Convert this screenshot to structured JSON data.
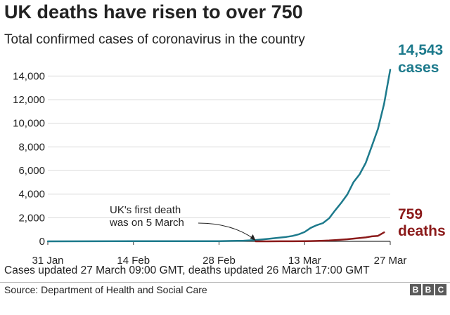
{
  "header": {
    "title": "UK deaths have risen to over 750",
    "subtitle": "Total confirmed cases of coronavirus in the country"
  },
  "labels": {
    "cases_value": "14,543",
    "cases_word": "cases",
    "deaths_value": "759",
    "deaths_word": "deaths",
    "annotation_line1": "UK's first death",
    "annotation_line2": "was on 5 March"
  },
  "footer": {
    "note": "Cases updated 27 March 09:00 GMT, deaths updated 26 March 17:00 GMT",
    "source": "Source: Department of Health and Social Care",
    "logo_letters": [
      "B",
      "B",
      "C"
    ]
  },
  "colors": {
    "cases": "#1d7a8c",
    "deaths": "#8b1a1a",
    "grid": "#d9d9d9",
    "axis": "#333333"
  },
  "chart_data": {
    "type": "line",
    "ylim": [
      0,
      14500
    ],
    "yticks": [
      0,
      2000,
      4000,
      6000,
      8000,
      10000,
      12000,
      14000
    ],
    "ytick_labels": [
      "0",
      "2,000",
      "4,000",
      "6,000",
      "8,000",
      "10,000",
      "12,000",
      "14,000"
    ],
    "xlim": [
      "2020-01-31",
      "2020-03-27"
    ],
    "xticks": [
      "2020-01-31",
      "2020-02-14",
      "2020-02-28",
      "2020-03-13",
      "2020-03-27"
    ],
    "xtick_labels": [
      "31 Jan",
      "14 Feb",
      "28 Feb",
      "13 Mar",
      "27 Mar"
    ],
    "grid": true,
    "annotation_date": "2020-03-05",
    "series": [
      {
        "key": "cases",
        "x": [
          "2020-01-31",
          "2020-02-14",
          "2020-02-28",
          "2020-03-01",
          "2020-03-03",
          "2020-03-05",
          "2020-03-07",
          "2020-03-09",
          "2020-03-10",
          "2020-03-11",
          "2020-03-12",
          "2020-03-13",
          "2020-03-14",
          "2020-03-15",
          "2020-03-16",
          "2020-03-17",
          "2020-03-18",
          "2020-03-19",
          "2020-03-20",
          "2020-03-21",
          "2020-03-22",
          "2020-03-23",
          "2020-03-24",
          "2020-03-25",
          "2020-03-26",
          "2020-03-27"
        ],
        "y": [
          2,
          9,
          20,
          36,
          51,
          115,
          206,
          319,
          373,
          456,
          590,
          798,
          1140,
          1372,
          1543,
          1950,
          2626,
          3269,
          3983,
          5018,
          5683,
          6650,
          8077,
          9529,
          11658,
          14543
        ]
      },
      {
        "key": "deaths",
        "x": [
          "2020-03-05",
          "2020-03-07",
          "2020-03-09",
          "2020-03-11",
          "2020-03-13",
          "2020-03-14",
          "2020-03-15",
          "2020-03-16",
          "2020-03-17",
          "2020-03-18",
          "2020-03-19",
          "2020-03-20",
          "2020-03-21",
          "2020-03-22",
          "2020-03-23",
          "2020-03-24",
          "2020-03-25",
          "2020-03-26"
        ],
        "y": [
          1,
          2,
          4,
          8,
          10,
          21,
          35,
          55,
          71,
          104,
          144,
          177,
          233,
          281,
          335,
          422,
          465,
          759
        ]
      }
    ]
  }
}
